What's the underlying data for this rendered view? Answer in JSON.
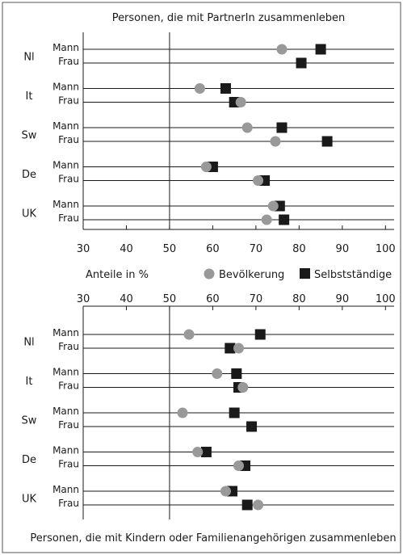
{
  "colors": {
    "bevoelkerung": "#999999",
    "selbststaendige": "#1a1a1a",
    "line": "#1a1a1a",
    "frame": "#555555"
  },
  "legend": {
    "axis_caption": "Anteile in %",
    "bevoelkerung": "Bevölkerung",
    "selbststaendige": "Selbstständige"
  },
  "chart_data": [
    {
      "type": "dot",
      "title": "Personen, die mit PartnerIn zusammenleben",
      "xlabel": "Anteile in %",
      "xlim": [
        30,
        102
      ],
      "ticks": [
        30,
        40,
        50,
        60,
        70,
        80,
        90,
        100
      ],
      "countries": [
        "Nl",
        "It",
        "Sw",
        "De",
        "UK"
      ],
      "rows": [
        "Mann",
        "Frau"
      ],
      "series": [
        {
          "name": "Bevölkerung",
          "marker": "circle",
          "values": [
            [
              76,
              null
            ],
            [
              57,
              66.5
            ],
            [
              68,
              74.5
            ],
            [
              58.5,
              70.5
            ],
            [
              74,
              72.5
            ]
          ]
        },
        {
          "name": "Selbstständige",
          "marker": "square",
          "values": [
            [
              85,
              80.5
            ],
            [
              63,
              65
            ],
            [
              76,
              86.5
            ],
            [
              60,
              72
            ],
            [
              75.5,
              76.5
            ]
          ]
        }
      ]
    },
    {
      "type": "dot",
      "title": "Personen, die mit Kindern oder Familienangehörigen zusammenleben",
      "xlabel": "",
      "xlim": [
        30,
        102
      ],
      "ticks": [
        30,
        40,
        50,
        60,
        70,
        80,
        90,
        100
      ],
      "countries": [
        "Nl",
        "It",
        "Sw",
        "De",
        "UK"
      ],
      "rows": [
        "Mann",
        "Frau"
      ],
      "series": [
        {
          "name": "Bevölkerung",
          "marker": "circle",
          "values": [
            [
              54.5,
              66
            ],
            [
              61,
              67
            ],
            [
              53,
              null
            ],
            [
              56.5,
              66
            ],
            [
              63,
              70.5
            ]
          ]
        },
        {
          "name": "Selbstständige",
          "marker": "square",
          "values": [
            [
              71,
              64
            ],
            [
              65.5,
              66
            ],
            [
              65,
              69
            ],
            [
              58.5,
              67.5
            ],
            [
              64.5,
              68
            ]
          ]
        }
      ]
    }
  ]
}
